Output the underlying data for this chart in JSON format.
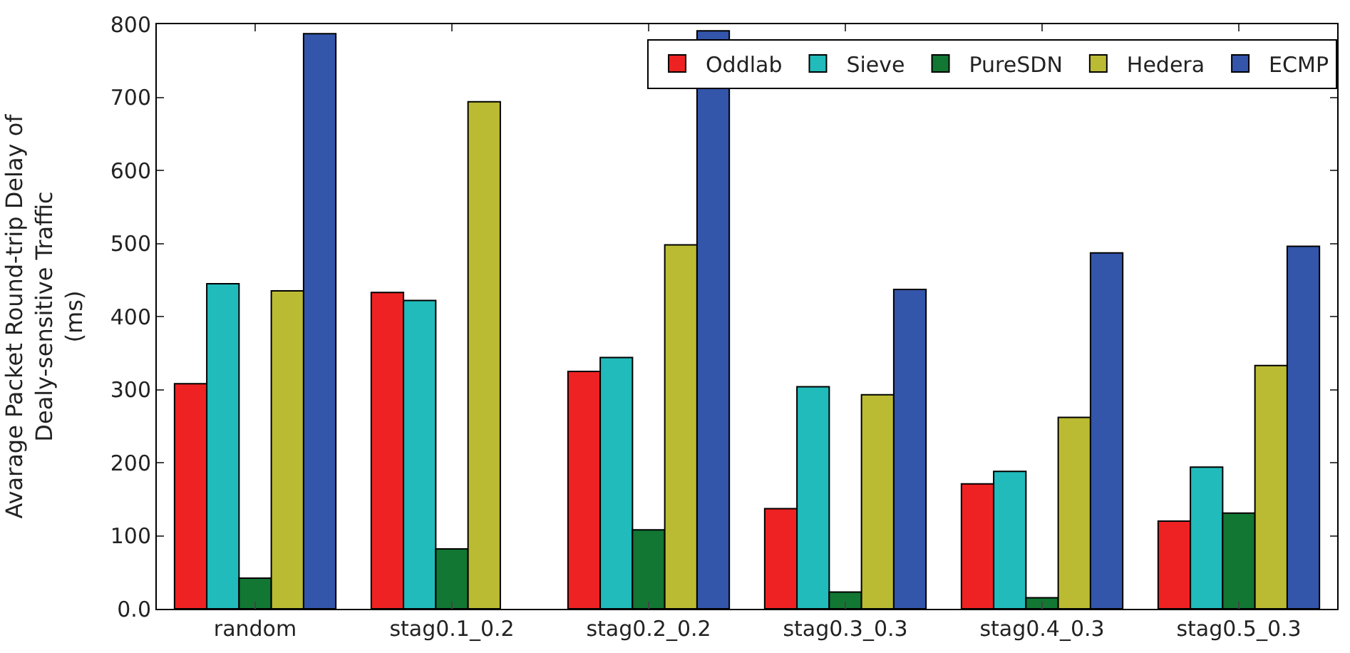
{
  "chart_data": {
    "type": "bar",
    "ylabel": "Avarage Packet Round-trip Delay of\nDealy-sensitive Traffic\n(ms)",
    "categories": [
      "random",
      "stag0.1_0.2",
      "stag0.2_0.2",
      "stag0.3_0.3",
      "stag0.4_0.3",
      "stag0.5_0.3"
    ],
    "series": [
      {
        "name": "Oddlab",
        "color": "#ee2222",
        "values": [
          308,
          433,
          325,
          137,
          171,
          120
        ]
      },
      {
        "name": "Sieve",
        "color": "#22bbbb",
        "values": [
          445,
          422,
          344,
          304,
          188,
          194
        ]
      },
      {
        "name": "PureSDN",
        "color": "#117733",
        "values": [
          42,
          82,
          108,
          23,
          15,
          131
        ]
      },
      {
        "name": "Hedera",
        "color": "#bbbb33",
        "values": [
          435,
          694,
          498,
          293,
          262,
          333
        ]
      },
      {
        "name": "ECMP",
        "color": "#3355aa",
        "values": [
          787,
          null,
          791,
          437,
          487,
          496
        ]
      }
    ],
    "ylim": [
      0,
      800
    ],
    "yticks": [
      {
        "value": 0,
        "label": "0.0"
      },
      100,
      200,
      300,
      400,
      500,
      600,
      700,
      800
    ],
    "legend": "top right"
  }
}
